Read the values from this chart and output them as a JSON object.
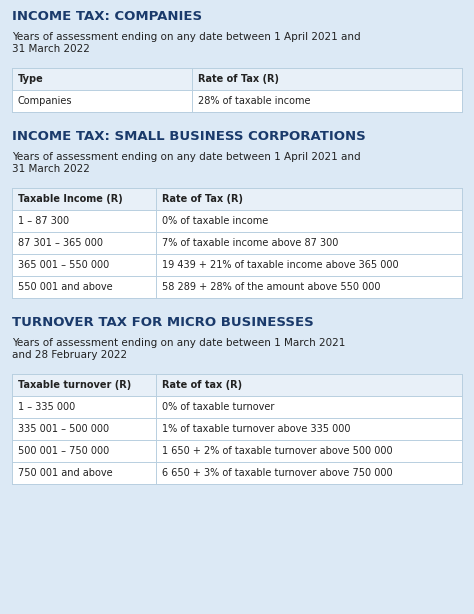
{
  "bg_color": "#dce9f5",
  "table_bg": "#ffffff",
  "header_bg": "#e8f0f8",
  "border_color": "#b8cfe0",
  "title_color": "#1a3a6b",
  "body_color": "#222222",
  "section1_title": "INCOME TAX: COMPANIES",
  "section1_subtitle": "Years of assessment ending on any date between 1 April 2021 and\n31 March 2022",
  "section1_headers": [
    "Type",
    "Rate of Tax (R)"
  ],
  "section1_rows": [
    [
      "Companies",
      "28% of taxable income"
    ]
  ],
  "section2_title": "INCOME TAX: SMALL BUSINESS CORPORATIONS",
  "section2_subtitle": "Years of assessment ending on any date between 1 April 2021 and\n31 March 2022",
  "section2_headers": [
    "Taxable Income (R)",
    "Rate of Tax (R)"
  ],
  "section2_rows": [
    [
      "1 – 87 300",
      "0% of taxable income"
    ],
    [
      "87 301 – 365 000",
      "7% of taxable income above 87 300"
    ],
    [
      "365 001 – 550 000",
      "19 439 + 21% of taxable income above 365 000"
    ],
    [
      "550 001 and above",
      "58 289 + 28% of the amount above 550 000"
    ]
  ],
  "section3_title": "TURNOVER TAX FOR MICRO BUSINESSES",
  "section3_subtitle": "Years of assessment ending on any date between 1 March 2021\nand 28 February 2022",
  "section3_headers": [
    "Taxable turnover (R)",
    "Rate of tax (R)"
  ],
  "section3_rows": [
    [
      "1 – 335 000",
      "0% of taxable turnover"
    ],
    [
      "335 001 – 500 000",
      "1% of taxable turnover above 335 000"
    ],
    [
      "500 001 – 750 000",
      "1 650 + 2% of taxable turnover above 500 000"
    ],
    [
      "750 001 and above",
      "6 650 + 3% of taxable turnover above 750 000"
    ]
  ],
  "figsize": [
    4.74,
    6.14
  ],
  "dpi": 100
}
